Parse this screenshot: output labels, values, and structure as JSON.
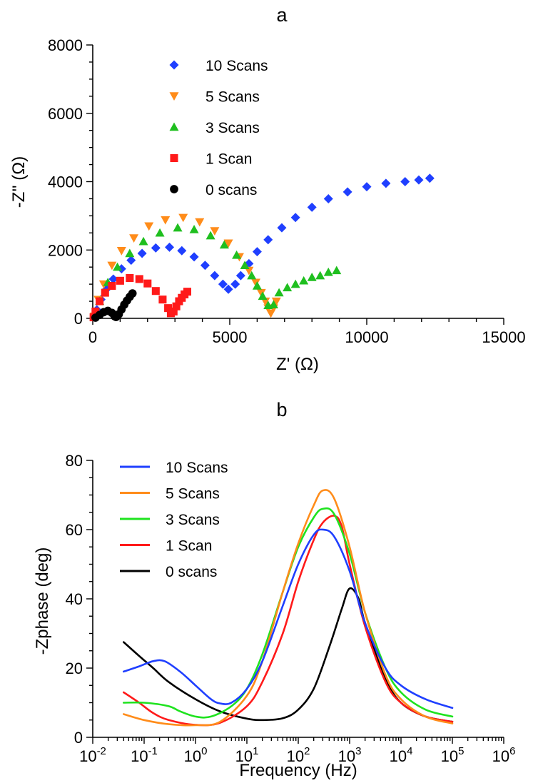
{
  "chart_data": [
    {
      "type": "scatter",
      "panel_label": "a",
      "xlabel": "Z' (Ω)",
      "ylabel": "-Z'' (Ω)",
      "xlim": [
        0,
        15000
      ],
      "ylim": [
        0,
        8000
      ],
      "x_ticks": [
        0,
        5000,
        10000,
        15000
      ],
      "y_ticks": [
        0,
        2000,
        4000,
        6000,
        8000
      ],
      "legend_position": "top-left",
      "series": [
        {
          "name": "10 Scans",
          "marker": "diamond",
          "color": "#1f3fff",
          "points": [
            [
              60,
              40
            ],
            [
              150,
              250
            ],
            [
              300,
              550
            ],
            [
              500,
              850
            ],
            [
              750,
              1150
            ],
            [
              1050,
              1450
            ],
            [
              1400,
              1700
            ],
            [
              1800,
              1900
            ],
            [
              2300,
              2060
            ],
            [
              2800,
              2080
            ],
            [
              3250,
              1980
            ],
            [
              3700,
              1800
            ],
            [
              4100,
              1550
            ],
            [
              4450,
              1250
            ],
            [
              4750,
              1000
            ],
            [
              4950,
              850
            ],
            [
              5200,
              1000
            ],
            [
              5400,
              1250
            ],
            [
              5700,
              1600
            ],
            [
              6000,
              1950
            ],
            [
              6400,
              2300
            ],
            [
              6900,
              2650
            ],
            [
              7400,
              2950
            ],
            [
              8000,
              3250
            ],
            [
              8600,
              3500
            ],
            [
              9300,
              3700
            ],
            [
              10000,
              3850
            ],
            [
              10700,
              3950
            ],
            [
              11400,
              4000
            ],
            [
              11900,
              4050
            ],
            [
              12300,
              4100
            ]
          ]
        },
        {
          "name": "5 Scans",
          "marker": "triangle-down",
          "color": "#ff8c1a",
          "points": [
            [
              60,
              60
            ],
            [
              200,
              550
            ],
            [
              400,
              1000
            ],
            [
              700,
              1550
            ],
            [
              1050,
              1980
            ],
            [
              1500,
              2350
            ],
            [
              2050,
              2700
            ],
            [
              2650,
              2880
            ],
            [
              3300,
              2950
            ],
            [
              3900,
              2820
            ],
            [
              4450,
              2560
            ],
            [
              4950,
              2200
            ],
            [
              5350,
              1800
            ],
            [
              5700,
              1400
            ],
            [
              5950,
              1050
            ],
            [
              6150,
              750
            ],
            [
              6300,
              500
            ],
            [
              6400,
              300
            ],
            [
              6500,
              150
            ],
            [
              6600,
              300
            ],
            [
              6700,
              500
            ]
          ]
        },
        {
          "name": "3 Scans",
          "marker": "triangle-up",
          "color": "#1fbf1f",
          "points": [
            [
              50,
              50
            ],
            [
              250,
              500
            ],
            [
              550,
              1050
            ],
            [
              900,
              1500
            ],
            [
              1350,
              1900
            ],
            [
              1850,
              2250
            ],
            [
              2450,
              2500
            ],
            [
              3100,
              2650
            ],
            [
              3700,
              2600
            ],
            [
              4300,
              2420
            ],
            [
              4800,
              2150
            ],
            [
              5250,
              1850
            ],
            [
              5550,
              1550
            ],
            [
              5800,
              1250
            ],
            [
              6000,
              950
            ],
            [
              6200,
              650
            ],
            [
              6400,
              380
            ],
            [
              6600,
              400
            ],
            [
              6800,
              750
            ],
            [
              7100,
              900
            ],
            [
              7400,
              1000
            ],
            [
              7700,
              1100
            ],
            [
              8000,
              1200
            ],
            [
              8300,
              1250
            ],
            [
              8600,
              1350
            ],
            [
              8900,
              1400
            ]
          ]
        },
        {
          "name": "1 Scan",
          "marker": "square",
          "color": "#ff1a1a",
          "points": [
            [
              30,
              30
            ],
            [
              100,
              200
            ],
            [
              250,
              500
            ],
            [
              450,
              750
            ],
            [
              700,
              950
            ],
            [
              1000,
              1100
            ],
            [
              1350,
              1180
            ],
            [
              1700,
              1150
            ],
            [
              2000,
              1020
            ],
            [
              2300,
              800
            ],
            [
              2550,
              550
            ],
            [
              2750,
              300
            ],
            [
              2850,
              150
            ],
            [
              2950,
              200
            ],
            [
              3050,
              350
            ],
            [
              3150,
              500
            ],
            [
              3250,
              600
            ],
            [
              3350,
              700
            ],
            [
              3450,
              780
            ]
          ]
        },
        {
          "name": "0 scans",
          "marker": "circle",
          "color": "#000000",
          "points": [
            [
              100,
              20
            ],
            [
              250,
              100
            ],
            [
              400,
              180
            ],
            [
              550,
              220
            ],
            [
              700,
              160
            ],
            [
              800,
              60
            ],
            [
              850,
              40
            ],
            [
              950,
              120
            ],
            [
              1050,
              260
            ],
            [
              1150,
              400
            ],
            [
              1250,
              520
            ],
            [
              1350,
              630
            ],
            [
              1450,
              730
            ]
          ]
        }
      ]
    },
    {
      "type": "line",
      "panel_label": "b",
      "xlabel": "Frequency (Hz)",
      "ylabel": "-Zphase (deg)",
      "x_scale": "log",
      "xlim": [
        0.01,
        1000000
      ],
      "ylim": [
        0,
        80
      ],
      "x_tick_labels": [
        {
          "base": "10",
          "exp": "-2"
        },
        {
          "base": "10",
          "exp": "-1"
        },
        {
          "base": "10",
          "exp": "0"
        },
        {
          "base": "10",
          "exp": "1"
        },
        {
          "base": "10",
          "exp": "2"
        },
        {
          "base": "10",
          "exp": "3"
        },
        {
          "base": "10",
          "exp": "4"
        },
        {
          "base": "10",
          "exp": "5"
        },
        {
          "base": "10",
          "exp": "6"
        }
      ],
      "y_ticks": [
        0,
        20,
        40,
        60,
        80
      ],
      "legend_position": "top-left",
      "series": [
        {
          "name": "10 Scans",
          "color": "#1f3fff",
          "points": [
            [
              0.04,
              19
            ],
            [
              0.08,
              20.5
            ],
            [
              0.15,
              22
            ],
            [
              0.25,
              22
            ],
            [
              0.5,
              19
            ],
            [
              1,
              15
            ],
            [
              2,
              11
            ],
            [
              3,
              9.8
            ],
            [
              5,
              10
            ],
            [
              10,
              14
            ],
            [
              20,
              22
            ],
            [
              50,
              38
            ],
            [
              100,
              50
            ],
            [
              200,
              58.5
            ],
            [
              300,
              60
            ],
            [
              500,
              58
            ],
            [
              1000,
              48
            ],
            [
              2000,
              33
            ],
            [
              5000,
              20
            ],
            [
              10000,
              15
            ],
            [
              30000,
              11
            ],
            [
              100000,
              8.5
            ]
          ]
        },
        {
          "name": "5 Scans",
          "color": "#ff8c1a",
          "points": [
            [
              0.04,
              6.7
            ],
            [
              0.1,
              5
            ],
            [
              0.3,
              3.8
            ],
            [
              1,
              3.5
            ],
            [
              3,
              4.5
            ],
            [
              10,
              12
            ],
            [
              20,
              22
            ],
            [
              50,
              42
            ],
            [
              100,
              56
            ],
            [
              200,
              67
            ],
            [
              300,
              71.3
            ],
            [
              500,
              69
            ],
            [
              1000,
              55
            ],
            [
              2000,
              36
            ],
            [
              5000,
              18
            ],
            [
              10000,
              11
            ],
            [
              30000,
              6
            ],
            [
              100000,
              4
            ]
          ]
        },
        {
          "name": "3 Scans",
          "color": "#1fe31f",
          "points": [
            [
              0.04,
              10
            ],
            [
              0.1,
              10
            ],
            [
              0.3,
              9
            ],
            [
              0.5,
              7.5
            ],
            [
              1,
              6
            ],
            [
              2,
              6
            ],
            [
              5,
              9
            ],
            [
              10,
              14
            ],
            [
              20,
              24
            ],
            [
              50,
              42
            ],
            [
              100,
              55
            ],
            [
              200,
              63.5
            ],
            [
              300,
              66
            ],
            [
              500,
              64.5
            ],
            [
              1000,
              53
            ],
            [
              2000,
              36
            ],
            [
              5000,
              20
            ],
            [
              10000,
              13
            ],
            [
              30000,
              8
            ],
            [
              100000,
              6
            ]
          ]
        },
        {
          "name": "1 Scan",
          "color": "#ff1a1a",
          "points": [
            [
              0.04,
              13
            ],
            [
              0.08,
              10
            ],
            [
              0.15,
              7
            ],
            [
              0.3,
              5
            ],
            [
              1,
              3.6
            ],
            [
              3,
              4.2
            ],
            [
              10,
              9
            ],
            [
              20,
              16
            ],
            [
              50,
              30
            ],
            [
              100,
              45
            ],
            [
              200,
              57
            ],
            [
              300,
              62
            ],
            [
              500,
              64
            ],
            [
              700,
              61
            ],
            [
              1000,
              50
            ],
            [
              2000,
              32
            ],
            [
              5000,
              16
            ],
            [
              10000,
              10
            ],
            [
              30000,
              6
            ],
            [
              100000,
              4.5
            ]
          ]
        },
        {
          "name": "0 scans",
          "color": "#000000",
          "points": [
            [
              0.04,
              27.5
            ],
            [
              0.08,
              23.5
            ],
            [
              0.15,
              20
            ],
            [
              0.3,
              16
            ],
            [
              1,
              11
            ],
            [
              3,
              7.5
            ],
            [
              10,
              5.4
            ],
            [
              20,
              5
            ],
            [
              50,
              5.5
            ],
            [
              100,
              8
            ],
            [
              200,
              14
            ],
            [
              400,
              26
            ],
            [
              700,
              37
            ],
            [
              1000,
              43
            ],
            [
              1500,
              40
            ],
            [
              2000,
              33
            ],
            [
              5000,
              17
            ],
            [
              10000,
              10
            ],
            [
              30000,
              6
            ],
            [
              100000,
              4.5
            ]
          ]
        }
      ]
    }
  ]
}
